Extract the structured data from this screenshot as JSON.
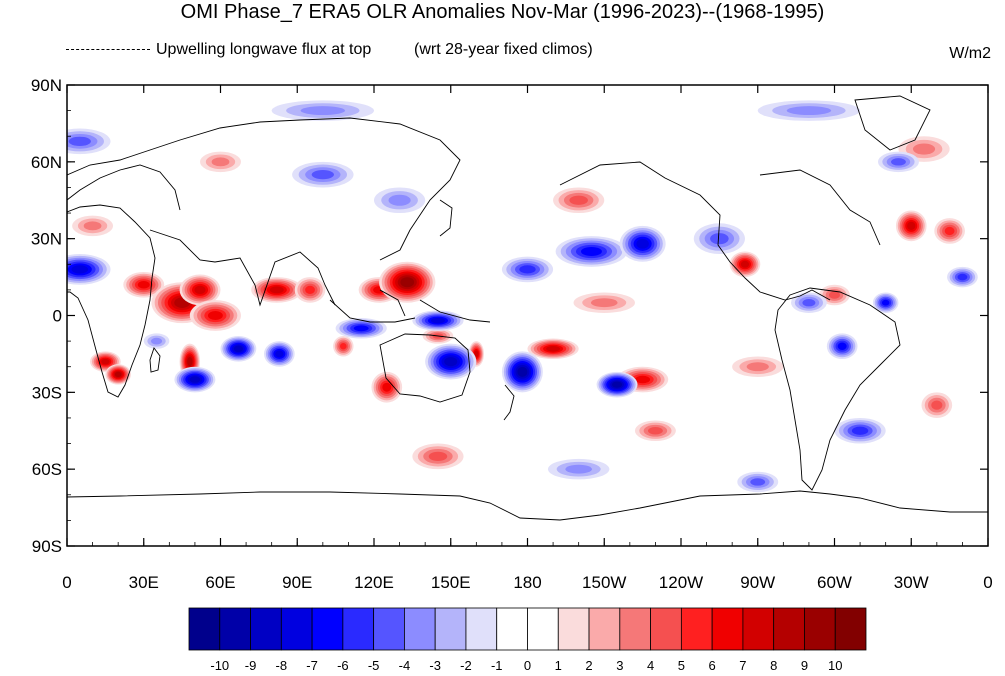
{
  "title": "OMI Phase_7 ERA5 OLR Anomalies Nov-Mar (1996-2023)--(1968-1995)",
  "left_label": "Upwelling longwave flux at top",
  "center_label": "(wrt 28-year fixed climos)",
  "units": "W/m2",
  "map": {
    "lon_range": [
      0,
      360
    ],
    "lat_range": [
      -90,
      90
    ],
    "lat_ticks": [
      {
        "value": 90,
        "label": "90N"
      },
      {
        "value": 60,
        "label": "60N"
      },
      {
        "value": 30,
        "label": "30N"
      },
      {
        "value": 0,
        "label": "0"
      },
      {
        "value": -30,
        "label": "30S"
      },
      {
        "value": -60,
        "label": "60S"
      },
      {
        "value": -90,
        "label": "90S"
      }
    ],
    "lon_ticks": [
      {
        "value": 0,
        "label": "0"
      },
      {
        "value": 30,
        "label": "30E"
      },
      {
        "value": 60,
        "label": "60E"
      },
      {
        "value": 90,
        "label": "90E"
      },
      {
        "value": 120,
        "label": "120E"
      },
      {
        "value": 150,
        "label": "150E"
      },
      {
        "value": 180,
        "label": "180"
      },
      {
        "value": 210,
        "label": "150W"
      },
      {
        "value": 240,
        "label": "120W"
      },
      {
        "value": 270,
        "label": "90W"
      },
      {
        "value": 300,
        "label": "60W"
      },
      {
        "value": 330,
        "label": "30W"
      },
      {
        "value": 360,
        "label": "0"
      }
    ],
    "anomalies": [
      {
        "lon": 30,
        "lat": 12,
        "value": 6,
        "rx": 8,
        "ry": 5
      },
      {
        "lon": 45,
        "lat": 5,
        "value": 8,
        "rx": 12,
        "ry": 8
      },
      {
        "lon": 52,
        "lat": 10,
        "value": 7,
        "rx": 8,
        "ry": 6
      },
      {
        "lon": 58,
        "lat": 0,
        "value": 6,
        "rx": 10,
        "ry": 6
      },
      {
        "lon": 82,
        "lat": 10,
        "value": 7,
        "rx": 10,
        "ry": 5
      },
      {
        "lon": 95,
        "lat": 10,
        "value": 5,
        "rx": 6,
        "ry": 5
      },
      {
        "lon": 122,
        "lat": 10,
        "value": 6,
        "rx": 8,
        "ry": 5
      },
      {
        "lon": 133,
        "lat": 13,
        "value": 9,
        "rx": 11,
        "ry": 8
      },
      {
        "lon": 15,
        "lat": -18,
        "value": 7,
        "rx": 6,
        "ry": 4
      },
      {
        "lon": 20,
        "lat": -23,
        "value": 8,
        "rx": 5,
        "ry": 4
      },
      {
        "lon": 48,
        "lat": -18,
        "value": 8,
        "rx": 4,
        "ry": 7
      },
      {
        "lon": 108,
        "lat": -12,
        "value": 5,
        "rx": 4,
        "ry": 4
      },
      {
        "lon": 125,
        "lat": -28,
        "value": 6,
        "rx": 6,
        "ry": 6
      },
      {
        "lon": 145,
        "lat": -8,
        "value": 4,
        "rx": 6,
        "ry": 3
      },
      {
        "lon": 160,
        "lat": -15,
        "value": 7,
        "rx": 3,
        "ry": 5
      },
      {
        "lon": 190,
        "lat": -13,
        "value": 7,
        "rx": 10,
        "ry": 4
      },
      {
        "lon": 225,
        "lat": -25,
        "value": 6,
        "rx": 10,
        "ry": 5
      },
      {
        "lon": 265,
        "lat": 20,
        "value": 7,
        "rx": 6,
        "ry": 5
      },
      {
        "lon": 300,
        "lat": 8,
        "value": 4,
        "rx": 6,
        "ry": 4
      },
      {
        "lon": 330,
        "lat": 35,
        "value": 7,
        "rx": 6,
        "ry": 6
      },
      {
        "lon": 345,
        "lat": 33,
        "value": 5,
        "rx": 6,
        "ry": 5
      },
      {
        "lon": 200,
        "lat": 45,
        "value": 4,
        "rx": 10,
        "ry": 5
      },
      {
        "lon": 145,
        "lat": -55,
        "value": 4,
        "rx": 10,
        "ry": 5
      },
      {
        "lon": 230,
        "lat": -45,
        "value": 4,
        "rx": 8,
        "ry": 4
      },
      {
        "lon": 340,
        "lat": -35,
        "value": 4,
        "rx": 6,
        "ry": 5
      },
      {
        "lon": 335,
        "lat": 65,
        "value": 3,
        "rx": 10,
        "ry": 5
      },
      {
        "lon": 10,
        "lat": 35,
        "value": 3,
        "rx": 8,
        "ry": 4
      },
      {
        "lon": 60,
        "lat": 60,
        "value": 3,
        "rx": 8,
        "ry": 4
      },
      {
        "lon": 210,
        "lat": 5,
        "value": 3,
        "rx": 12,
        "ry": 4
      },
      {
        "lon": 270,
        "lat": -20,
        "value": 3,
        "rx": 10,
        "ry": 4
      },
      {
        "lon": 5,
        "lat": 18,
        "value": -7,
        "rx": 12,
        "ry": 6
      },
      {
        "lon": 35,
        "lat": -10,
        "value": -3,
        "rx": 5,
        "ry": 3
      },
      {
        "lon": 50,
        "lat": -25,
        "value": -8,
        "rx": 8,
        "ry": 5
      },
      {
        "lon": 67,
        "lat": -13,
        "value": -8,
        "rx": 7,
        "ry": 5
      },
      {
        "lon": 83,
        "lat": -15,
        "value": -7,
        "rx": 6,
        "ry": 5
      },
      {
        "lon": 115,
        "lat": -5,
        "value": -6,
        "rx": 10,
        "ry": 4
      },
      {
        "lon": 145,
        "lat": -2,
        "value": -7,
        "rx": 10,
        "ry": 4
      },
      {
        "lon": 150,
        "lat": -18,
        "value": -8,
        "rx": 10,
        "ry": 7
      },
      {
        "lon": 178,
        "lat": -22,
        "value": -9,
        "rx": 8,
        "ry": 8
      },
      {
        "lon": 215,
        "lat": -27,
        "value": -9,
        "rx": 8,
        "ry": 5
      },
      {
        "lon": 205,
        "lat": 25,
        "value": -6,
        "rx": 14,
        "ry": 6
      },
      {
        "lon": 225,
        "lat": 28,
        "value": -7,
        "rx": 9,
        "ry": 7
      },
      {
        "lon": 180,
        "lat": 18,
        "value": -5,
        "rx": 10,
        "ry": 5
      },
      {
        "lon": 255,
        "lat": 30,
        "value": -4,
        "rx": 10,
        "ry": 6
      },
      {
        "lon": 290,
        "lat": 5,
        "value": -4,
        "rx": 7,
        "ry": 4
      },
      {
        "lon": 303,
        "lat": -12,
        "value": -6,
        "rx": 6,
        "ry": 5
      },
      {
        "lon": 320,
        "lat": 5,
        "value": -6,
        "rx": 5,
        "ry": 4
      },
      {
        "lon": 350,
        "lat": 15,
        "value": -5,
        "rx": 6,
        "ry": 4
      },
      {
        "lon": 100,
        "lat": 55,
        "value": -4,
        "rx": 12,
        "ry": 5
      },
      {
        "lon": 130,
        "lat": 45,
        "value": -3,
        "rx": 10,
        "ry": 5
      },
      {
        "lon": 325,
        "lat": 60,
        "value": -4,
        "rx": 8,
        "ry": 4
      },
      {
        "lon": 5,
        "lat": 68,
        "value": -4,
        "rx": 12,
        "ry": 5
      },
      {
        "lon": 310,
        "lat": -45,
        "value": -5,
        "rx": 10,
        "ry": 5
      },
      {
        "lon": 270,
        "lat": -65,
        "value": -4,
        "rx": 8,
        "ry": 4
      },
      {
        "lon": 200,
        "lat": -60,
        "value": -3,
        "rx": 12,
        "ry": 4
      },
      {
        "lon": 100,
        "lat": 80,
        "value": -3,
        "rx": 20,
        "ry": 4
      },
      {
        "lon": 290,
        "lat": 80,
        "value": -3,
        "rx": 20,
        "ry": 4
      }
    ]
  },
  "colorbar": {
    "labels": [
      "-10",
      "-9",
      "-8",
      "-7",
      "-6",
      "-5",
      "-4",
      "-3",
      "-2",
      "-1",
      "0",
      "1",
      "2",
      "3",
      "4",
      "5",
      "6",
      "7",
      "8",
      "9",
      "10"
    ],
    "colors": [
      "#00008c",
      "#0000a8",
      "#0000c4",
      "#0000e0",
      "#0000ff",
      "#2a2aff",
      "#5555ff",
      "#8c8cff",
      "#b4b4fa",
      "#e0e0fa",
      "#ffffff",
      "#ffffff",
      "#fadcdc",
      "#faaaaa",
      "#f57878",
      "#f55050",
      "#ff2020",
      "#f00000",
      "#d20000",
      "#b40000",
      "#9a0000",
      "#820000"
    ]
  }
}
